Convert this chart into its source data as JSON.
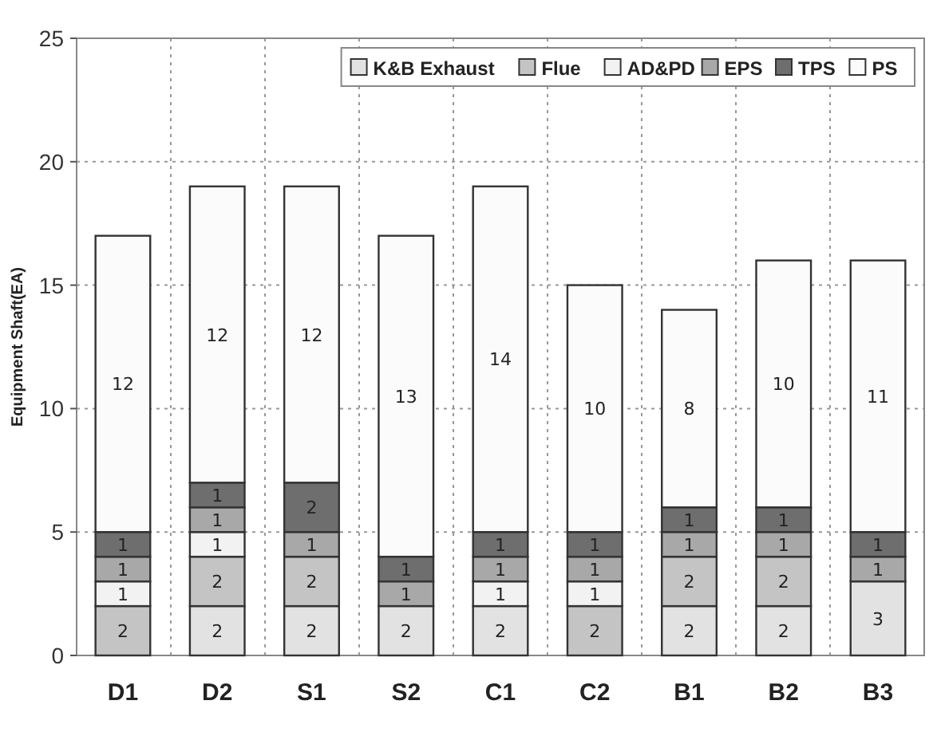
{
  "chart_data": {
    "type": "bar",
    "stacked": true,
    "ylabel": "Equipment Shaft(EA)",
    "categories": [
      "D1",
      "D2",
      "S1",
      "S2",
      "C1",
      "C2",
      "B1",
      "B2",
      "B3"
    ],
    "series": [
      {
        "name": "K&B Exhaust",
        "color": "#e2e2e2",
        "values": [
          0,
          2,
          2,
          2,
          2,
          0,
          2,
          2,
          3
        ],
        "value_labels": [
          null,
          "2",
          "2",
          "2",
          "2",
          null,
          "2",
          "2",
          "3"
        ]
      },
      {
        "name": "Flue",
        "color": "#c4c4c4",
        "values": [
          2,
          2,
          2,
          0,
          0,
          2,
          2,
          2,
          0
        ],
        "value_labels": [
          "2",
          "2",
          "2",
          null,
          null,
          "2",
          "2",
          "2",
          null
        ]
      },
      {
        "name": "AD&PD",
        "color": "#f2f2f2",
        "values": [
          1,
          1,
          0,
          0,
          1,
          1,
          0,
          0,
          0
        ],
        "value_labels": [
          "1",
          "1",
          null,
          null,
          "1",
          "1",
          null,
          null,
          null
        ]
      },
      {
        "name": "EPS",
        "color": "#a8a8a8",
        "values": [
          1,
          1,
          1,
          1,
          1,
          1,
          1,
          1,
          1
        ],
        "value_labels": [
          "1",
          "1",
          "1",
          "1",
          "1",
          "1",
          "1",
          "1",
          "1"
        ]
      },
      {
        "name": "TPS",
        "color": "#6e6e6e",
        "values": [
          1,
          1,
          2,
          1,
          1,
          1,
          1,
          1,
          1
        ],
        "value_labels": [
          "1",
          "1",
          "2",
          "1",
          "1",
          "1",
          "1",
          "1",
          "1"
        ]
      },
      {
        "name": "PS",
        "color": "#fbfbfb",
        "values": [
          12,
          12,
          12,
          13,
          14,
          10,
          8,
          10,
          11
        ],
        "value_labels": [
          "12",
          "12",
          "12",
          "13",
          "14",
          "10",
          "8",
          "10",
          "11"
        ]
      }
    ],
    "ylim": [
      0,
      25
    ],
    "yticks": [
      0,
      5,
      10,
      15,
      20,
      25
    ],
    "grid": true,
    "legend": "top right"
  }
}
